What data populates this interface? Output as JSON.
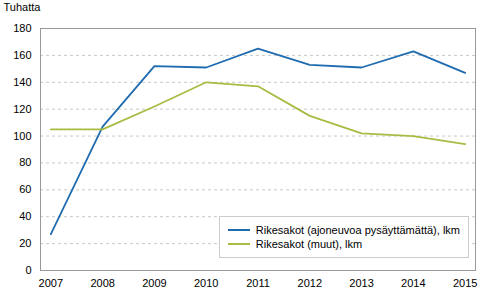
{
  "chart_data": {
    "type": "line",
    "x": [
      2007,
      2008,
      2009,
      2010,
      2011,
      2012,
      2013,
      2014,
      2015
    ],
    "series": [
      {
        "name": "Rikesakot (ajoneuvoa pysäyttämättä), lkm",
        "color": "#1F6BB0",
        "values": [
          27,
          107,
          152,
          151,
          165,
          153,
          151,
          163,
          147
        ]
      },
      {
        "name": "Rikesakot (muut), lkm",
        "color": "#AABB44",
        "values": [
          105,
          105,
          122,
          140,
          137,
          115,
          102,
          100,
          94
        ]
      }
    ],
    "y_label": "Tuhatta",
    "xlim": [
      2006.8,
      2015.2
    ],
    "xticks": [
      2007,
      2008,
      2009,
      2010,
      2011,
      2012,
      2013,
      2014,
      2015
    ],
    "ylim": [
      0,
      180
    ],
    "yticks": [
      0,
      20,
      40,
      60,
      80,
      100,
      120,
      140,
      160,
      180
    ],
    "grid": true,
    "legend": "lower right"
  }
}
